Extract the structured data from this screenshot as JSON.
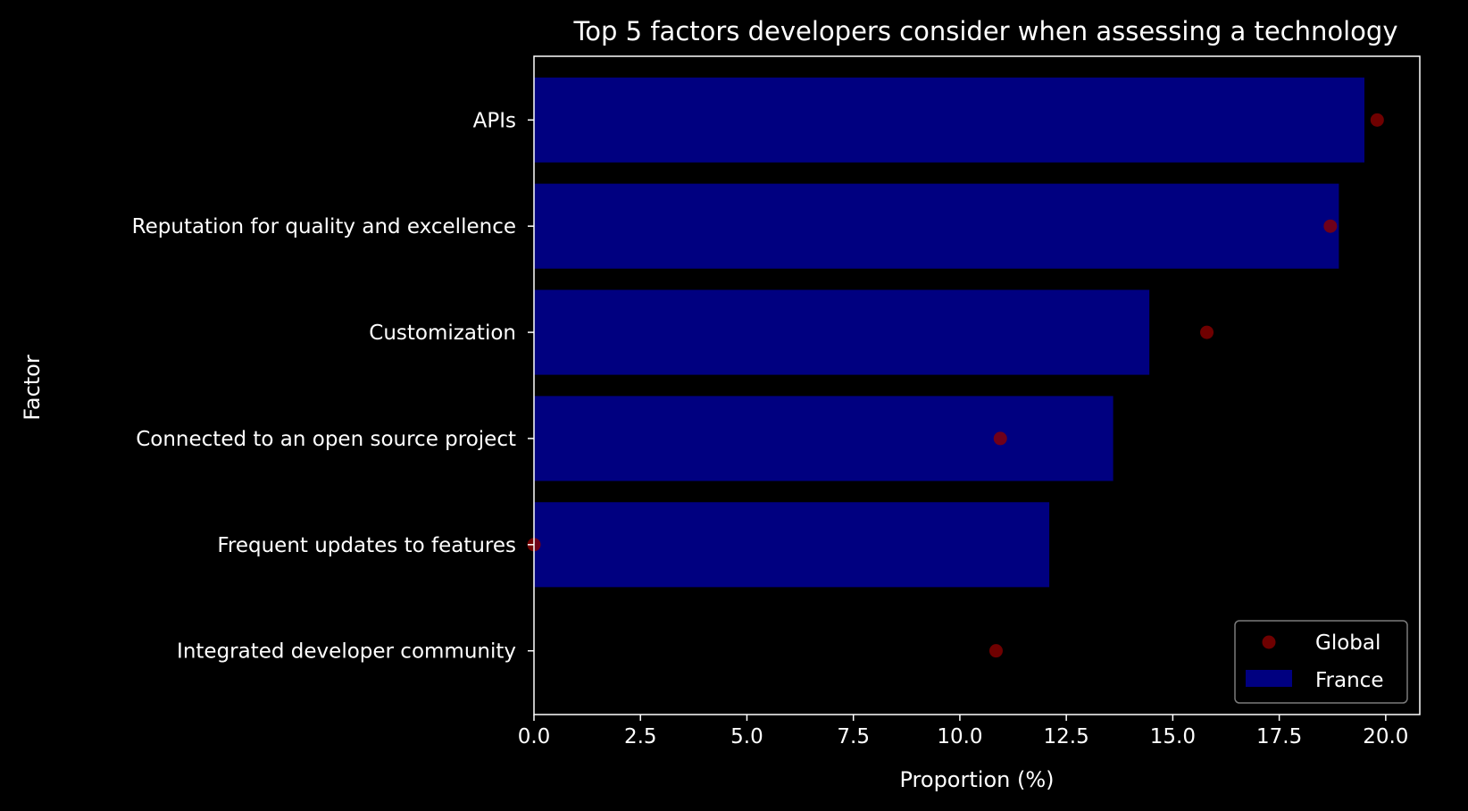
{
  "chart_data": {
    "type": "bar",
    "orientation": "horizontal",
    "title": "Top 5 factors developers consider when assessing a technology",
    "xlabel": "Proportion (%)",
    "ylabel": "Factor",
    "categories": [
      "APIs",
      "Reputation for quality and excellence",
      "Customization",
      "Connected to an open source project",
      "Frequent updates to features",
      "Integrated developer community"
    ],
    "series": [
      {
        "name": "France",
        "kind": "bar",
        "color": "#000080",
        "values": [
          19.5,
          18.9,
          14.45,
          13.6,
          12.1,
          null
        ]
      },
      {
        "name": "Global",
        "kind": "point",
        "color": "#8b0000",
        "values": [
          19.8,
          18.7,
          15.8,
          10.95,
          0.0,
          10.85
        ]
      }
    ],
    "xlim": [
      0,
      20.8
    ],
    "xticks": [
      "0.0",
      "2.5",
      "5.0",
      "7.5",
      "10.0",
      "12.5",
      "15.0",
      "17.5",
      "20.0"
    ],
    "grid": false,
    "legend_position": "bottom-right",
    "background": "#000000",
    "foreground": "#ffffff"
  }
}
